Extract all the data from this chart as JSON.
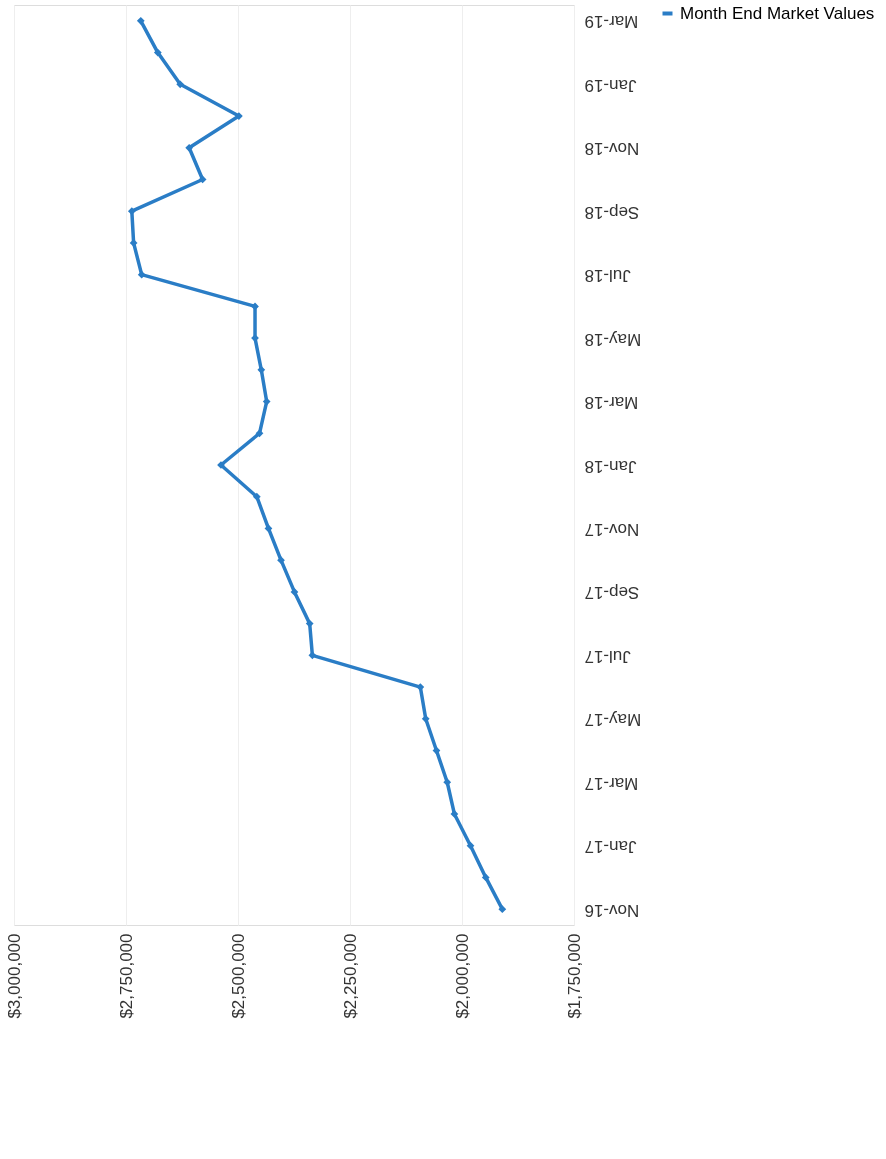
{
  "chart_data": {
    "type": "line",
    "orientation": "horizontal",
    "categories": [
      "Mar-19",
      null,
      "Jan-19",
      null,
      "Nov-18",
      null,
      "Sep-18",
      null,
      "Jul-18",
      null,
      "May-18",
      null,
      "Mar-18",
      null,
      "Jan-18",
      null,
      "Nov-17",
      null,
      "Sep-17",
      null,
      "Jul-17",
      null,
      "May-17",
      null,
      "Mar-17",
      null,
      "Jan-17",
      null,
      "Nov-16"
    ],
    "series": [
      {
        "name": "Month End Market Values",
        "color": "#2a7dc6",
        "values": [
          2717000,
          2679000,
          2629000,
          2498000,
          2609000,
          2579000,
          2737000,
          2733000,
          2715000,
          2462000,
          2462000,
          2448000,
          2436000,
          2452000,
          2538000,
          2458000,
          2432000,
          2404000,
          2374000,
          2340000,
          2334000,
          2093000,
          2081000,
          2057000,
          2033000,
          2017000,
          1981000,
          1947000,
          1910000
        ]
      }
    ],
    "xlim": [
      3000000,
      1750000
    ],
    "xticks": [
      {
        "value": 3000000,
        "label": "$3,000,000"
      },
      {
        "value": 2750000,
        "label": "$2,750,000"
      },
      {
        "value": 2500000,
        "label": "$2,500,000"
      },
      {
        "value": 2250000,
        "label": "$2,250,000"
      },
      {
        "value": 2000000,
        "label": "$2,000,000"
      },
      {
        "value": 1750000,
        "label": "$1,750,000"
      }
    ],
    "grid": "x",
    "legend": "right",
    "marker": "diamond",
    "line_style": "solid"
  }
}
